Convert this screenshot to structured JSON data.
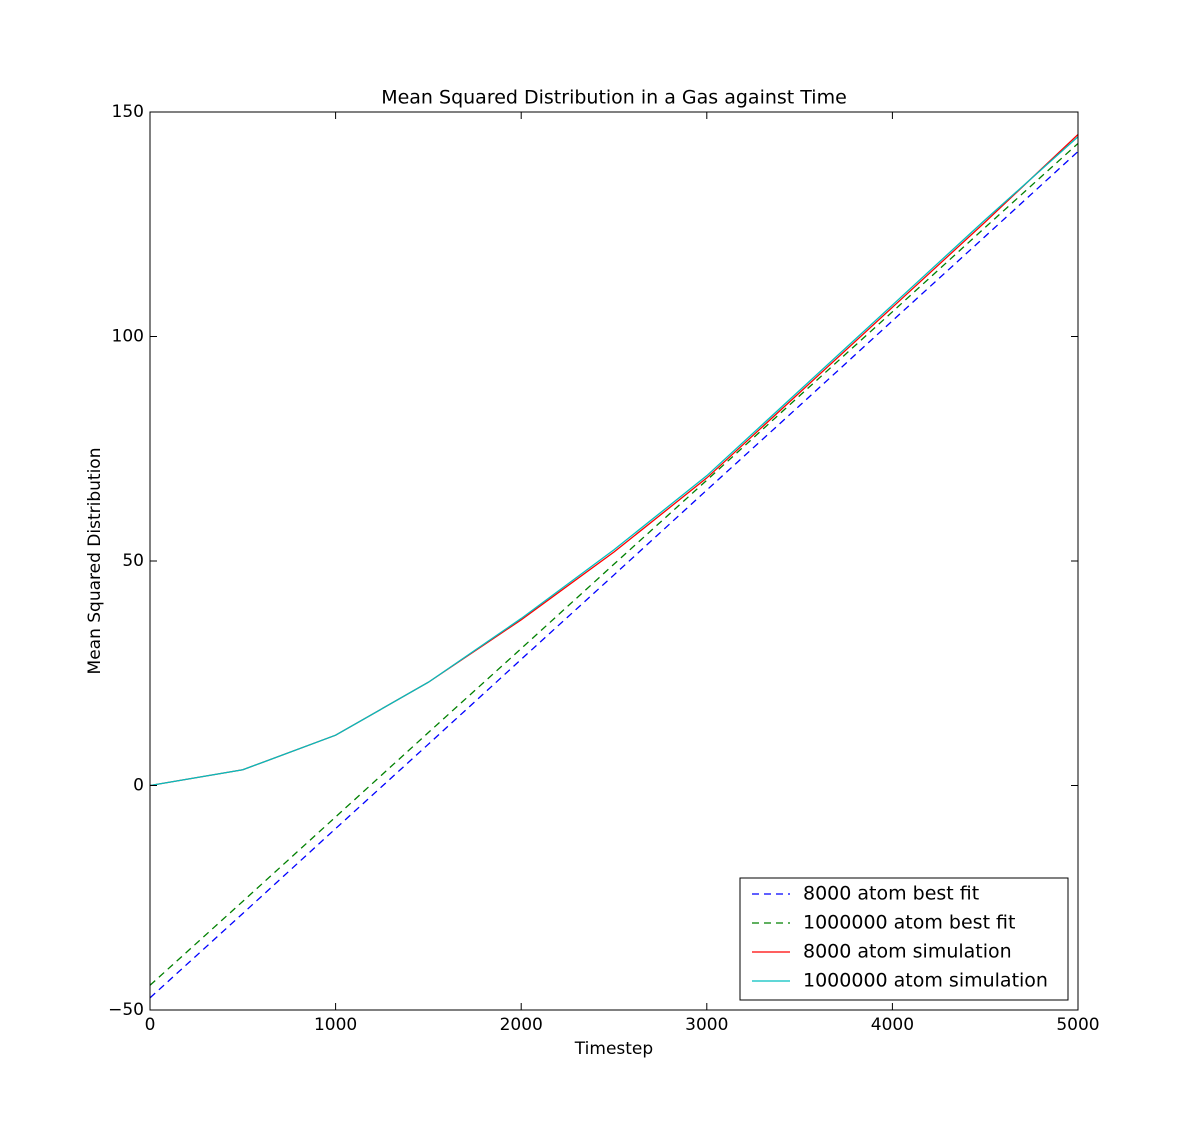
{
  "chart_data": {
    "type": "line",
    "title": "Mean Squared Distribution in a Gas against Time",
    "x_label": "Timestep",
    "y_label": "Mean Squared Distribution",
    "x": [
      0,
      500,
      1000,
      1500,
      2000,
      2500,
      3000,
      3500,
      4000,
      4500,
      5000
    ],
    "series": [
      {
        "name": "8000 atom best fit",
        "color": "#0000ff",
        "linestyle": "dashed",
        "values": [
          -47.3,
          -28.5,
          -9.6,
          9.2,
          28.1,
          46.9,
          65.8,
          84.6,
          103.5,
          122.3,
          141.2
        ]
      },
      {
        "name": "1000000 atom best fit",
        "color": "#008000",
        "linestyle": "dashed",
        "values": [
          -44.5,
          -25.8,
          -7,
          11.8,
          30.5,
          49.3,
          68,
          86.8,
          105.5,
          124.3,
          143
        ]
      },
      {
        "name": "8000 atom simulation",
        "color": "#ff0000",
        "linestyle": "solid",
        "values": [
          0,
          3.5,
          11.2,
          23,
          36.9,
          52,
          68.5,
          87.5,
          106.5,
          125.5,
          145
        ]
      },
      {
        "name": "1000000 atom simulation",
        "color": "#00bfbf",
        "linestyle": "solid",
        "values": [
          0,
          3.5,
          11.2,
          23,
          37.2,
          52.5,
          69,
          88,
          107,
          126,
          144.5
        ]
      }
    ],
    "xlim": [
      0,
      5000
    ],
    "xticks": [
      0,
      1000,
      2000,
      3000,
      4000,
      5000
    ],
    "ylim": [
      -50,
      150
    ],
    "yticks": [
      {
        "value": -50,
        "label": "−50"
      },
      0,
      50,
      100,
      150
    ],
    "legend": "lower right",
    "grid": false
  }
}
